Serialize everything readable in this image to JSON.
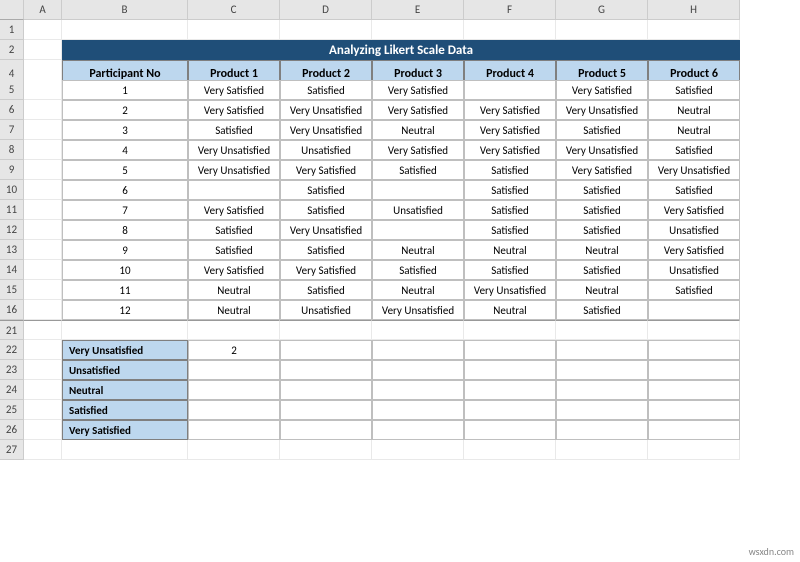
{
  "columns": [
    "A",
    "B",
    "C",
    "D",
    "E",
    "F",
    "G",
    "H"
  ],
  "title": "Analyzing Likert Scale Data",
  "headers": [
    "Participant No",
    "Product 1",
    "Product 2",
    "Product 3",
    "Product 4",
    "Product 5",
    "Product 6"
  ],
  "rows": [
    [
      "1",
      "Very Satisfied",
      "Satisfied",
      "Very Satisfied",
      "",
      "Very Satisfied",
      "Satisfied"
    ],
    [
      "2",
      "Very Satisfied",
      "Very Unsatisfied",
      "Very Satisfied",
      "Very Satisfied",
      "Very Unsatisfied",
      "Neutral"
    ],
    [
      "3",
      "Satisfied",
      "Very Unsatisfied",
      "Neutral",
      "Very Satisfied",
      "Satisfied",
      "Neutral"
    ],
    [
      "4",
      "Very Unsatisfied",
      "Unsatisfied",
      "Very Satisfied",
      "Very Satisfied",
      "Very Unsatisfied",
      "Satisfied"
    ],
    [
      "5",
      "Very Unsatisfied",
      "Very Satisfied",
      "Satisfied",
      "Satisfied",
      "Very Satisfied",
      "Very Unsatisfied"
    ],
    [
      "6",
      "",
      "Satisfied",
      "",
      "Satisfied",
      "Satisfied",
      "Satisfied"
    ],
    [
      "7",
      "Very Satisfied",
      "Satisfied",
      "Unsatisfied",
      "Satisfied",
      "Satisfied",
      "Very Satisfied"
    ],
    [
      "8",
      "Satisfied",
      "Very Unsatisfied",
      "",
      "Satisfied",
      "Satisfied",
      "Unsatisfied"
    ],
    [
      "9",
      "Satisfied",
      "Satisfied",
      "Neutral",
      "Neutral",
      "Neutral",
      "Very Satisfied"
    ],
    [
      "10",
      "Very Satisfied",
      "Very Satisfied",
      "Satisfied",
      "Satisfied",
      "Satisfied",
      "Unsatisfied"
    ],
    [
      "11",
      "Neutral",
      "Satisfied",
      "Neutral",
      "Very Unsatisfied",
      "Neutral",
      "Satisfied"
    ],
    [
      "12",
      "Neutral",
      "Unsatisfied",
      "Very Unsatisfied",
      "Neutral",
      "Satisfied",
      ""
    ]
  ],
  "summary_labels": [
    "Very Unsatisfied",
    "Unsatisfied",
    "Neutral",
    "Satisfied",
    "Very Satisfied"
  ],
  "summary_value": "2",
  "row_numbers_top": [
    "1",
    "2",
    "4",
    "5",
    "6",
    "7",
    "8",
    "9",
    "10",
    "11",
    "12",
    "13",
    "14",
    "15",
    "16"
  ],
  "row_numbers_bot": [
    "21",
    "22",
    "23",
    "24",
    "25",
    "26",
    "27"
  ],
  "watermark": "wsxdn.com"
}
